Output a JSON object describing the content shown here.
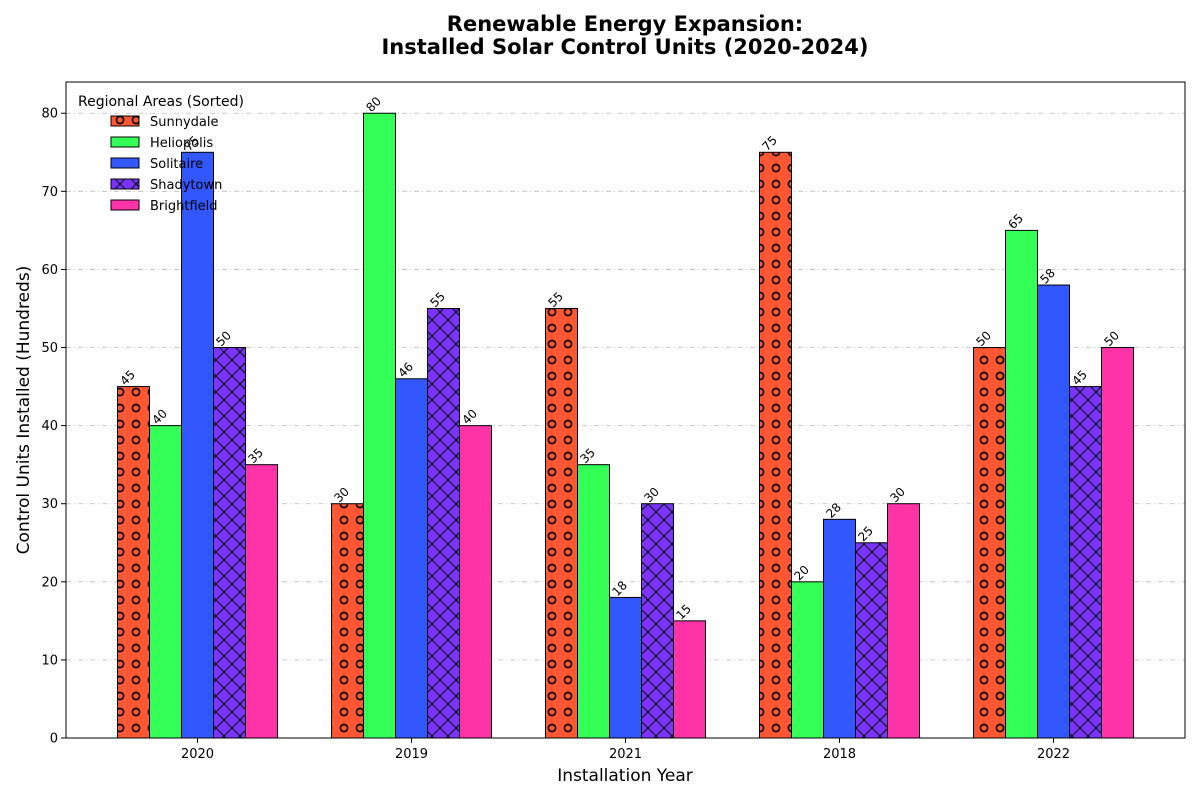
{
  "chart_data": {
    "type": "bar",
    "title_lines": [
      "Renewable Energy Expansion:",
      "Installed Solar Control Units (2020-2024)"
    ],
    "xlabel": "Installation Year",
    "ylabel": "Control Units Installed (Hundreds)",
    "categories": [
      "2020",
      "2019",
      "2021",
      "2018",
      "2022"
    ],
    "ylim": [
      0,
      84
    ],
    "yticks": [
      0,
      10,
      20,
      30,
      40,
      50,
      60,
      70,
      80
    ],
    "grid": true,
    "legend": {
      "title": "Regional Areas (Sorted)",
      "placement": "top-left"
    },
    "series": [
      {
        "name": "Sunnydale",
        "color": "#FF5733",
        "hatch": "circles",
        "values": [
          45,
          30,
          55,
          75,
          50
        ]
      },
      {
        "name": "Heliopolis",
        "color": "#33FF57",
        "hatch": "none",
        "values": [
          40,
          80,
          35,
          20,
          65
        ]
      },
      {
        "name": "Solitaire",
        "color": "#3357FF",
        "hatch": "none",
        "values": [
          75,
          46,
          18,
          28,
          58
        ]
      },
      {
        "name": "Shadytown",
        "color": "#7D33FF",
        "hatch": "cross",
        "values": [
          50,
          55,
          30,
          25,
          45
        ]
      },
      {
        "name": "Brightfield",
        "color": "#FF33A8",
        "hatch": "none",
        "values": [
          35,
          40,
          15,
          30,
          50
        ]
      }
    ]
  }
}
